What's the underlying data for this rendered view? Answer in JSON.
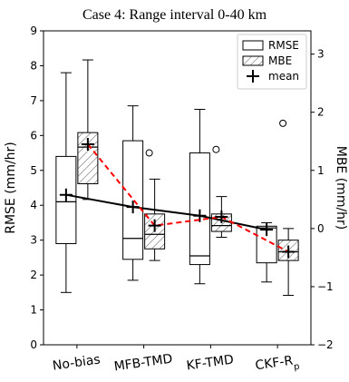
{
  "chart_data": {
    "type": "box",
    "title": "Case 4: Range interval 0-40 km",
    "categories": [
      "No-bias",
      "MFB-TMD",
      "KF-TMD",
      "CKF-Rp"
    ],
    "left_axis": {
      "label": "RMSE (mm/hr)",
      "ylim": [
        0,
        9
      ],
      "ticks": [
        0,
        1,
        2,
        3,
        4,
        5,
        6,
        7,
        8,
        9
      ]
    },
    "right_axis": {
      "label": "MBE (mm/hr)",
      "ylim": [
        -2,
        3.4
      ],
      "ticks": [
        -2,
        -1,
        0,
        1,
        2,
        3
      ]
    },
    "legend": {
      "position": "top-right",
      "entries": [
        {
          "key": "rmse",
          "label": "RMSE"
        },
        {
          "key": "mbe",
          "label": "MBE"
        },
        {
          "key": "mean",
          "label": "mean"
        }
      ]
    },
    "series": [
      {
        "name": "RMSE",
        "axis": "left",
        "boxes": [
          {
            "whislo": 1.5,
            "q1": 2.9,
            "med": 4.1,
            "q3": 5.4,
            "whishi": 7.8,
            "mean": 4.3,
            "fliers": []
          },
          {
            "whislo": 1.85,
            "q1": 2.45,
            "med": 3.05,
            "q3": 5.85,
            "whishi": 6.85,
            "mean": 3.95,
            "fliers": [
              5.5
            ]
          },
          {
            "whislo": 1.75,
            "q1": 2.3,
            "med": 2.55,
            "q3": 5.5,
            "whishi": 6.75,
            "mean": 3.7,
            "fliers": [
              5.6
            ]
          },
          {
            "whislo": 1.8,
            "q1": 2.35,
            "med": 3.35,
            "q3": 3.4,
            "whishi": 3.5,
            "mean": 3.3,
            "fliers": [
              6.35
            ]
          }
        ]
      },
      {
        "name": "MBE",
        "axis": "right",
        "boxes": [
          {
            "whislo": 0.5,
            "q1": 0.77,
            "med": 1.4,
            "q3": 1.65,
            "whishi": 2.9,
            "mean": 1.45,
            "fliers": []
          },
          {
            "whislo": -0.55,
            "q1": -0.35,
            "med": -0.1,
            "q3": 0.25,
            "whishi": 0.85,
            "mean": 0.05,
            "fliers": []
          },
          {
            "whislo": -0.15,
            "q1": -0.05,
            "med": 0.05,
            "q3": 0.25,
            "whishi": 0.55,
            "mean": 0.2,
            "fliers": []
          },
          {
            "whislo": -1.15,
            "q1": -0.55,
            "med": -0.4,
            "q3": -0.2,
            "whishi": 0.0,
            "mean": -0.4,
            "fliers": []
          }
        ]
      }
    ]
  },
  "colors": {
    "mbe_mean_line": "#ff0000",
    "rmse_mean_line": "#000000",
    "box_stroke": "#000000",
    "flier": "#ffffff"
  }
}
